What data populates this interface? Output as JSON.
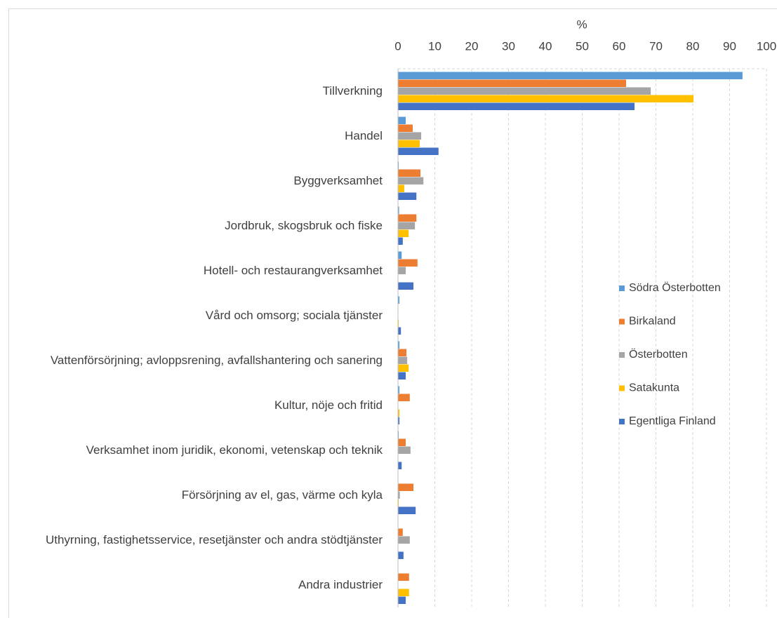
{
  "chart_data": {
    "type": "bar",
    "orientation": "horizontal",
    "x_label": "%",
    "categories": [
      "Tillverkning",
      "Handel",
      "Byggverksamhet",
      "Jordbruk, skogsbruk och fiske",
      "Hotell- och restaurangverksamhet",
      "Vård och omsorg; sociala tjänster",
      "Vattenförsörjning; avloppsrening, avfallshantering och sanering",
      "Kultur, nöje och fritid",
      "Verksamhet inom juridik, ekonomi, vetenskap och teknik",
      "Försörjning av el, gas, värme och kyla",
      "Uthyrning, fastighetsservice, resetjänster och andra stödtjänster",
      "Andra industrier"
    ],
    "series": [
      {
        "name": "Södra Österbotten",
        "color": "#5b9bd5",
        "values": [
          93.5,
          2.1,
          0.2,
          0.3,
          1.0,
          0.4,
          0.4,
          0.4,
          0.2,
          0,
          0,
          0
        ]
      },
      {
        "name": "Birkaland",
        "color": "#ed7d31",
        "values": [
          61.9,
          4.0,
          6.1,
          5.0,
          5.3,
          0,
          2.3,
          3.2,
          2.1,
          4.2,
          1.3,
          3.0
        ]
      },
      {
        "name": "Österbotten",
        "color": "#a5a5a5",
        "values": [
          68.6,
          6.3,
          6.9,
          4.6,
          2.1,
          0,
          2.5,
          0,
          3.4,
          0.5,
          3.2,
          0
        ]
      },
      {
        "name": "Satakunta",
        "color": "#ffc000",
        "values": [
          80.2,
          5.9,
          1.7,
          2.9,
          0,
          0.2,
          2.9,
          0.4,
          0.1,
          0.2,
          0,
          3.0
        ]
      },
      {
        "name": "Egentliga Finland",
        "color": "#4472c4",
        "values": [
          64.2,
          11.0,
          5.0,
          1.3,
          4.2,
          0.8,
          2.1,
          0.4,
          1.0,
          4.8,
          1.5,
          2.1
        ]
      }
    ],
    "xlim": [
      0,
      100
    ],
    "xticks": [
      0,
      10,
      20,
      30,
      40,
      50,
      60,
      70,
      80,
      90,
      100
    ],
    "grid": true,
    "legend": "right"
  }
}
